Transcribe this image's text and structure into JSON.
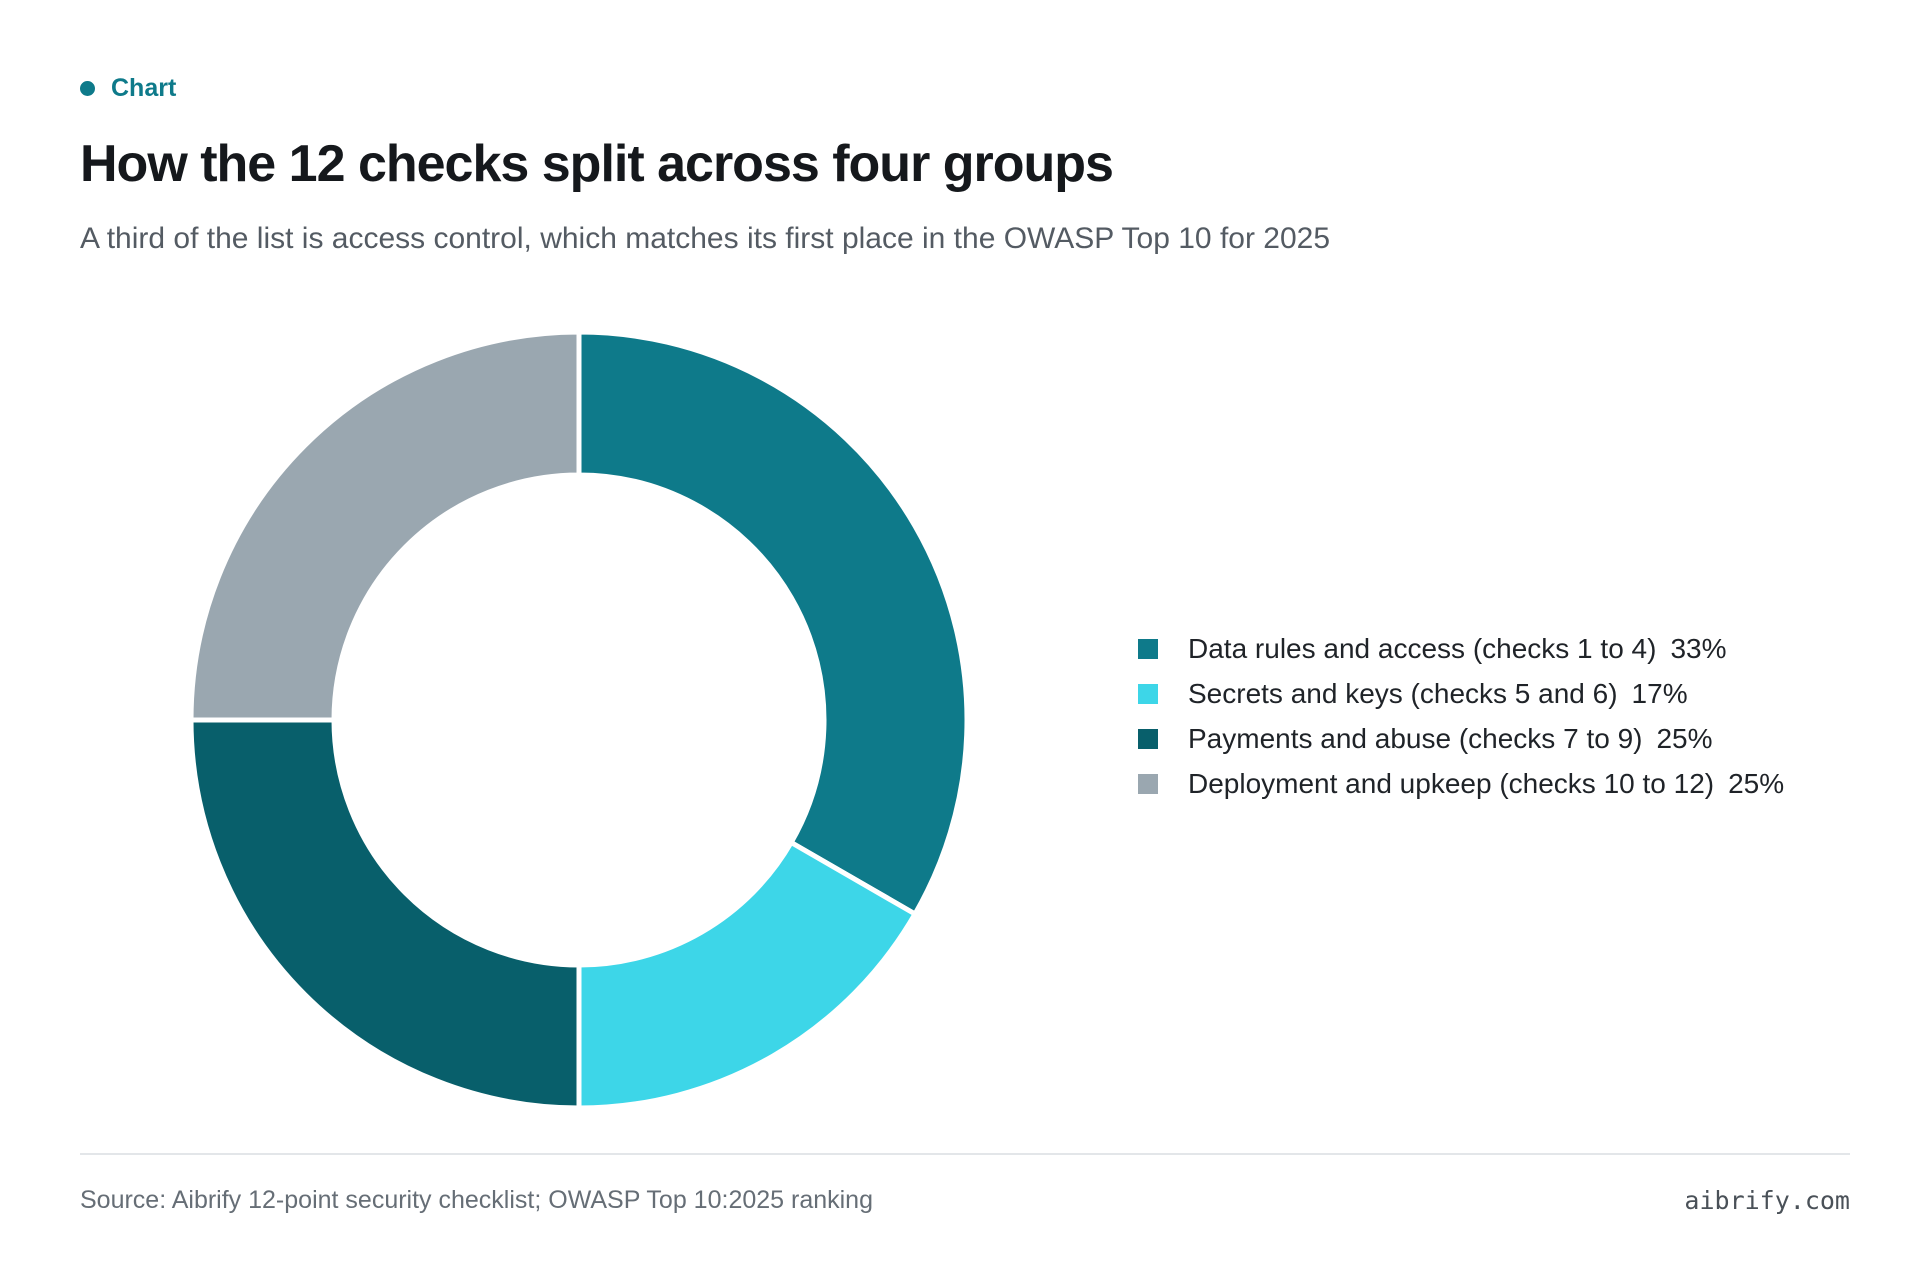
{
  "header": {
    "eyebrow": "Chart",
    "title": "How the 12 checks split across four groups",
    "subtitle": "A third of the list is access control, which matches its first place in the OWASP Top 10 for 2025"
  },
  "chart_data": {
    "type": "pie",
    "variant": "donut",
    "categories": [
      "Data rules and access (checks 1 to 4)",
      "Secrets and keys (checks 5 and 6)",
      "Payments and abuse (checks 7 to 9)",
      "Deployment and upkeep (checks 10 to 12)"
    ],
    "values": [
      4,
      2,
      3,
      3
    ],
    "labels": [
      "33%",
      "17%",
      "25%",
      "25%"
    ],
    "colors": [
      "#0e7a8a",
      "#3dd6e8",
      "#085f6b",
      "#9aa7b0"
    ],
    "legend_position": "right",
    "start": "top, clockwise"
  },
  "footer": {
    "source": "Source: Aibrify 12-point security checklist; OWASP Top 10:2025 ranking",
    "brand": "aibrify.com"
  }
}
